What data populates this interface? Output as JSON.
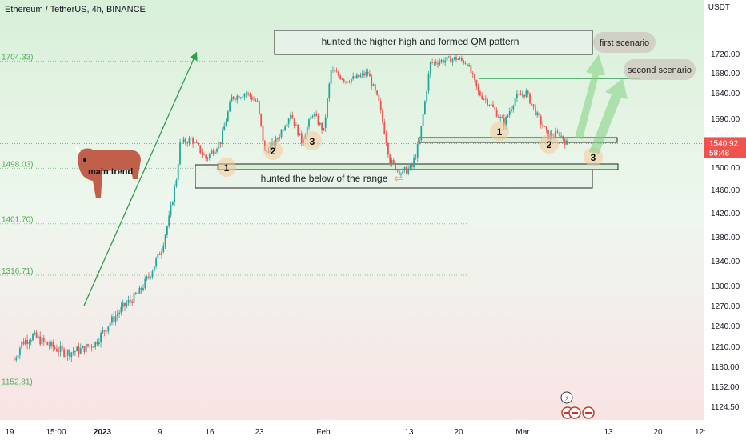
{
  "header": {
    "symbol_line": "Ethereum / TetherUS, 4h, BINANCE",
    "currency": "USDT"
  },
  "price_badge": {
    "price": "1540.92",
    "countdown": "58:48"
  },
  "fib_levels": [
    {
      "label": "1704.33)",
      "value": 1704.33
    },
    {
      "label": "1498.03)",
      "value": 1498.03
    },
    {
      "label": "1401.70)",
      "value": 1401.7
    },
    {
      "label": "1316.71)",
      "value": 1316.71
    },
    {
      "label": "1152.81)",
      "value": 1152.81
    }
  ],
  "annotations": {
    "top_box": "hunted the higher high and formed QM pattern",
    "bottom_box": "hunted the below of the range",
    "first_scenario": "first scenario",
    "second_scenario": "second scenario",
    "main_trend": "main trend",
    "points": [
      "1",
      "2",
      "3",
      "1",
      "2",
      "3"
    ]
  },
  "colors": {
    "up": "#26a69a",
    "down": "#ef5350",
    "trend": "#2e9e4f",
    "bull": "#c0604a"
  },
  "chart_data": {
    "type": "candlestick",
    "title": "Ethereum / TetherUS, 4h, BINANCE",
    "y_ticks": [
      1720,
      1680,
      1640,
      1590,
      1540,
      1500,
      1460,
      1420,
      1380,
      1340,
      1300,
      1270,
      1240,
      1210,
      1180,
      1152,
      1124.5
    ],
    "y_tick_labels": [
      "1720.00",
      "1680.00",
      "1640.00",
      "1590.00",
      "1540.00",
      "1500.00",
      "1460.00",
      "1420.00",
      "1380.00",
      "1340.00",
      "1300.00",
      "1270.00",
      "1240.00",
      "1210.00",
      "1180.00",
      "1152.00",
      "1124.50"
    ],
    "x_ticks": [
      "19",
      "15:00",
      "2023",
      "9",
      "16",
      "23",
      "Feb",
      "13",
      "20",
      "Mar",
      "13",
      "20",
      "12:"
    ],
    "series_close_path": [
      [
        0,
        1190
      ],
      [
        4,
        1215
      ],
      [
        10,
        1225
      ],
      [
        20,
        1210
      ],
      [
        28,
        1200
      ],
      [
        36,
        1205
      ],
      [
        44,
        1215
      ],
      [
        52,
        1245
      ],
      [
        60,
        1270
      ],
      [
        68,
        1290
      ],
      [
        74,
        1320
      ],
      [
        80,
        1360
      ],
      [
        84,
        1410
      ],
      [
        88,
        1480
      ],
      [
        90,
        1540
      ],
      [
        96,
        1550
      ],
      [
        104,
        1515
      ],
      [
        112,
        1545
      ],
      [
        118,
        1630
      ],
      [
        126,
        1640
      ],
      [
        132,
        1620
      ],
      [
        136,
        1525
      ],
      [
        142,
        1545
      ],
      [
        150,
        1600
      ],
      [
        156,
        1545
      ],
      [
        162,
        1600
      ],
      [
        168,
        1565
      ],
      [
        172,
        1685
      ],
      [
        180,
        1665
      ],
      [
        186,
        1670
      ],
      [
        192,
        1680
      ],
      [
        198,
        1620
      ],
      [
        204,
        1510
      ],
      [
        210,
        1490
      ],
      [
        216,
        1500
      ],
      [
        220,
        1545
      ],
      [
        226,
        1700
      ],
      [
        232,
        1705
      ],
      [
        240,
        1710
      ],
      [
        246,
        1700
      ],
      [
        252,
        1640
      ],
      [
        258,
        1620
      ],
      [
        266,
        1580
      ],
      [
        272,
        1630
      ],
      [
        278,
        1640
      ],
      [
        284,
        1595
      ],
      [
        290,
        1555
      ],
      [
        296,
        1560
      ],
      [
        300,
        1541
      ]
    ],
    "last_price": 1540.92
  }
}
